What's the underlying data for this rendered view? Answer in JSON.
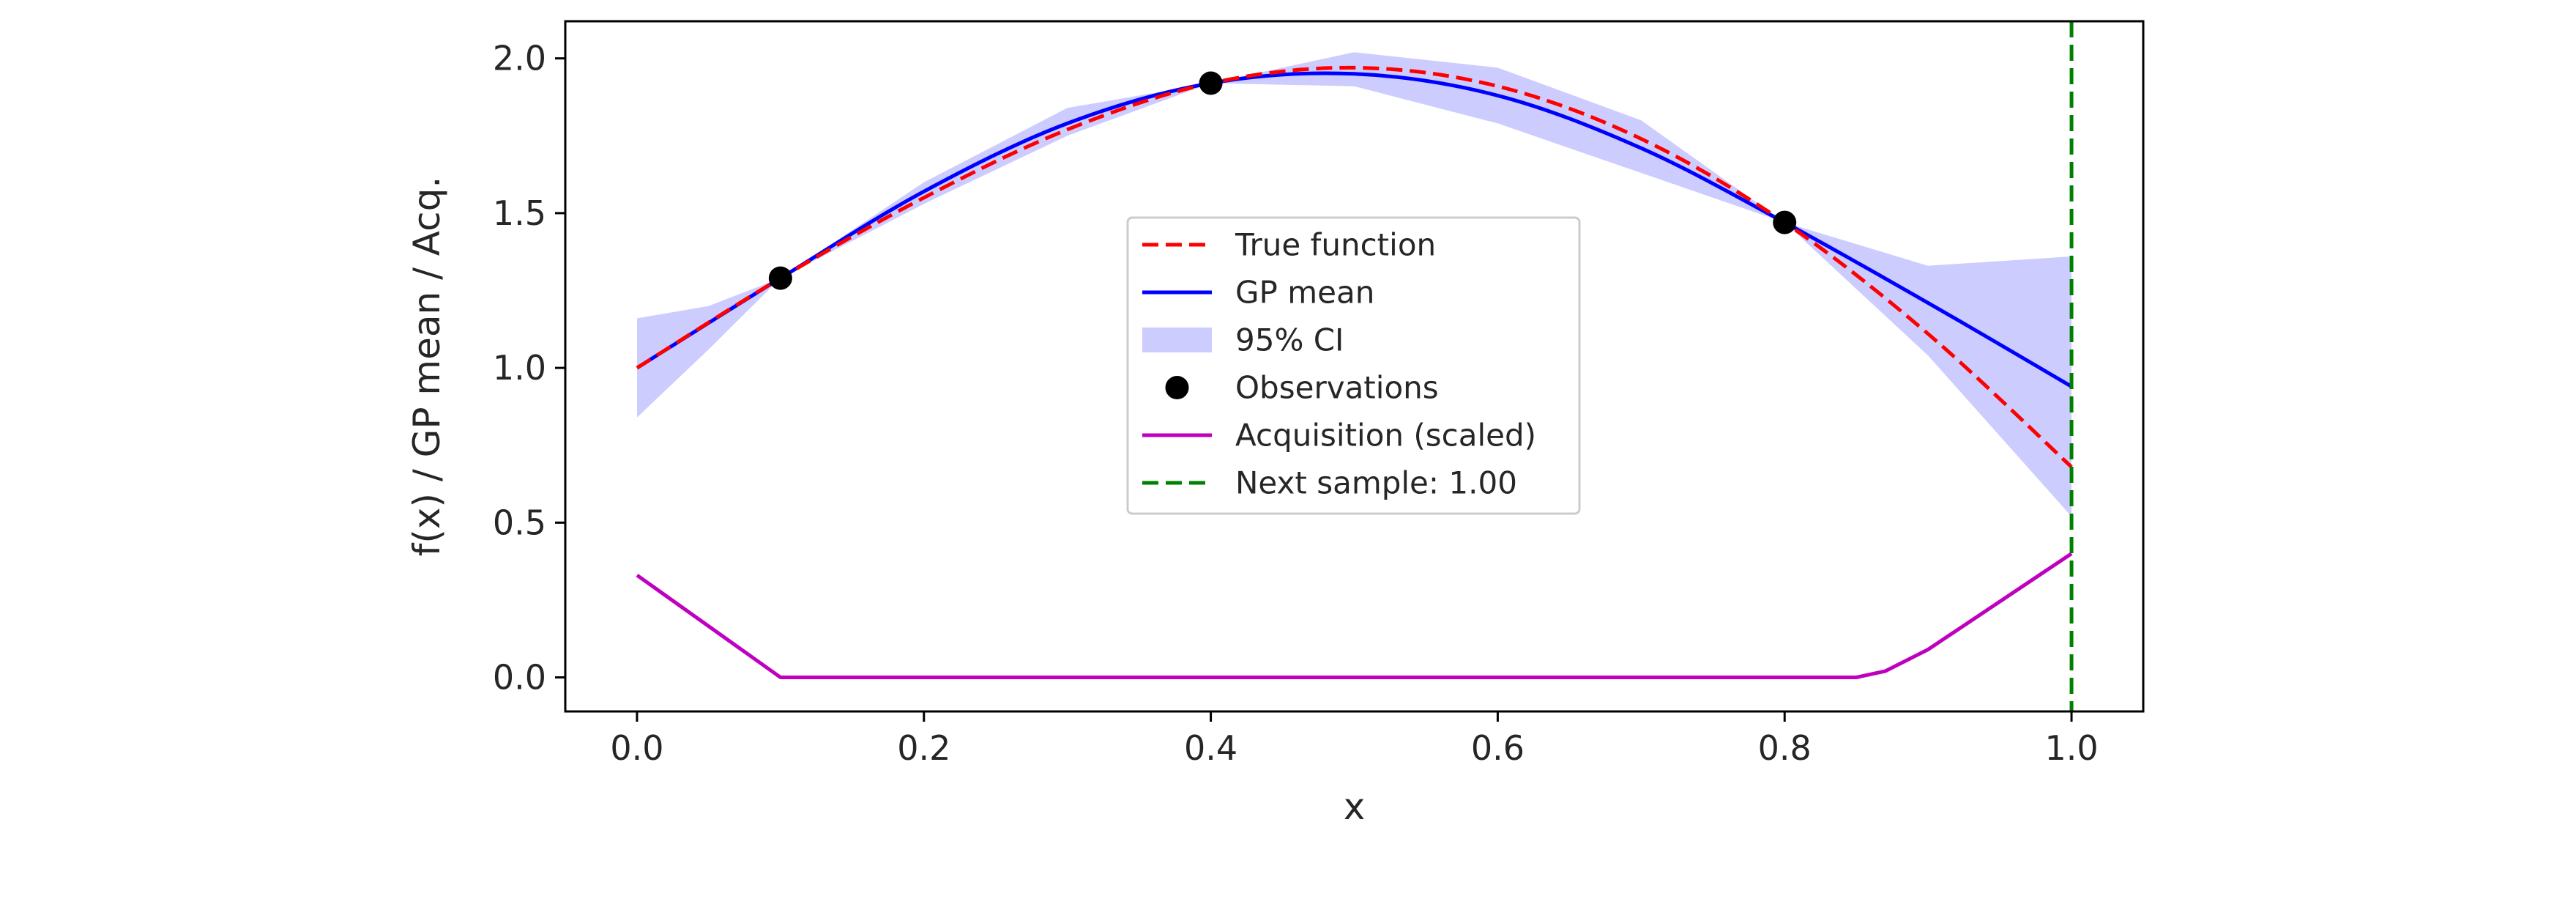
{
  "chart_data": {
    "type": "line",
    "title": "",
    "xlabel": "x",
    "ylabel": "f(x) / GP mean / Acq.",
    "xlim": [
      -0.05,
      1.05
    ],
    "ylim": [
      -0.11,
      2.12
    ],
    "xticks": [
      0.0,
      0.2,
      0.4,
      0.6,
      0.8,
      1.0
    ],
    "xtick_labels": [
      "0.0",
      "0.2",
      "0.4",
      "0.6",
      "0.8",
      "1.0"
    ],
    "yticks": [
      0.0,
      0.5,
      1.0,
      1.5,
      2.0
    ],
    "ytick_labels": [
      "0.0",
      "0.5",
      "1.0",
      "1.5",
      "2.0"
    ],
    "grid": false,
    "legend_position": "center",
    "legend": [
      {
        "label": "True function",
        "style": "dashed-line",
        "color": "#ff0000"
      },
      {
        "label": "GP mean",
        "style": "line",
        "color": "#0000ff"
      },
      {
        "label": "95% CI",
        "style": "patch",
        "color": "#0000ff"
      },
      {
        "label": "Observations",
        "style": "marker",
        "color": "#000000"
      },
      {
        "label": "Acquisition (scaled)",
        "style": "line",
        "color": "#bf00bf"
      },
      {
        "label": "Next sample: 1.00",
        "style": "dashed-line",
        "color": "#008000"
      }
    ],
    "series": [
      {
        "name": "True function",
        "kind": "line",
        "dashed": true,
        "color": "#ff0000",
        "x": [
          0.0,
          0.1,
          0.2,
          0.3,
          0.4,
          0.5,
          0.6,
          0.7,
          0.8,
          0.9,
          1.0
        ],
        "y": [
          1.0,
          1.29,
          1.55,
          1.77,
          1.92,
          1.97,
          1.91,
          1.74,
          1.47,
          1.11,
          0.68
        ]
      },
      {
        "name": "GP mean",
        "kind": "line",
        "color": "#0000ff",
        "x": [
          0.0,
          0.1,
          0.2,
          0.3,
          0.4,
          0.5,
          0.6,
          0.7,
          0.8,
          0.9,
          1.0
        ],
        "y": [
          1.0,
          1.29,
          1.57,
          1.79,
          1.92,
          1.95,
          1.88,
          1.71,
          1.47,
          1.21,
          0.94
        ]
      },
      {
        "name": "95% CI",
        "kind": "band",
        "color": "#0000ff",
        "opacity": 0.2,
        "x": [
          0.0,
          0.05,
          0.1,
          0.2,
          0.3,
          0.4,
          0.5,
          0.6,
          0.7,
          0.8,
          0.9,
          1.0
        ],
        "lower": [
          0.84,
          1.06,
          1.29,
          1.53,
          1.75,
          1.92,
          1.91,
          1.79,
          1.63,
          1.47,
          1.04,
          0.52
        ],
        "upper": [
          1.16,
          1.2,
          1.29,
          1.6,
          1.84,
          1.92,
          2.02,
          1.97,
          1.8,
          1.47,
          1.33,
          1.36
        ]
      },
      {
        "name": "Observations",
        "kind": "scatter",
        "color": "#000000",
        "x": [
          0.1,
          0.4,
          0.8
        ],
        "y": [
          1.29,
          1.92,
          1.47
        ]
      },
      {
        "name": "Acquisition (scaled)",
        "kind": "line",
        "color": "#bf00bf",
        "x": [
          0.0,
          0.1,
          0.2,
          0.3,
          0.4,
          0.5,
          0.6,
          0.7,
          0.8,
          0.85,
          0.87,
          0.9,
          1.0
        ],
        "y": [
          0.33,
          0.0,
          0.0,
          0.0,
          0.0,
          0.0,
          0.0,
          0.0,
          0.0,
          0.0,
          0.02,
          0.09,
          0.4
        ]
      },
      {
        "name": "Next sample: 1.00",
        "kind": "vline",
        "dashed": true,
        "color": "#008000",
        "x": 1.0
      }
    ]
  }
}
